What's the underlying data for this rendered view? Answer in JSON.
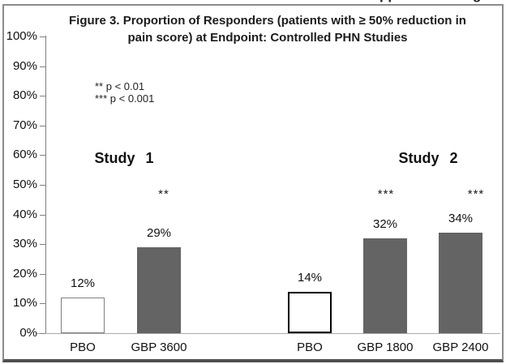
{
  "page": {
    "edge_fragments": {
      "left": "pp",
      "right": "g"
    }
  },
  "colors": {
    "bar_dark": "#646464",
    "bar_white": "#ffffff",
    "pbo_study1_outline": "#808080",
    "pbo_study2_outline": "#000000",
    "y_axis": "#808080",
    "x_axis": "#ababab",
    "frame_border": "#8c8c8c",
    "frame_bottom_border": "#4f4f4f",
    "text": "#111111"
  },
  "chart_data": {
    "type": "bar",
    "title": "Figure 3. Proportion of Responders (patients with ≥ 50% reduction in pain score) at Endpoint: Controlled PHN Studies",
    "xlabel": "",
    "ylabel": "",
    "ylim": [
      0,
      100
    ],
    "ytick_step": 10,
    "ytick_labels": [
      "0%",
      "10%",
      "20%",
      "30%",
      "40%",
      "50%",
      "60%",
      "70%",
      "80%",
      "90%",
      "100%"
    ],
    "grid": false,
    "legend": [
      "** p < 0.01",
      "*** p < 0.001"
    ],
    "legend_position": "upper-left-inside",
    "groups": [
      {
        "name": "Study 1",
        "bars": [
          {
            "category": "PBO",
            "value": 12,
            "label": "12%",
            "fill": "white",
            "outline": "gray",
            "significance": ""
          },
          {
            "category": "GBP 3600",
            "value": 29,
            "label": "29%",
            "fill": "dark",
            "outline": "none",
            "significance": "**"
          }
        ]
      },
      {
        "name": "Study 2",
        "bars": [
          {
            "category": "PBO",
            "value": 14,
            "label": "14%",
            "fill": "white",
            "outline": "black",
            "significance": ""
          },
          {
            "category": "GBP 1800",
            "value": 32,
            "label": "32%",
            "fill": "dark",
            "outline": "none",
            "significance": "***"
          },
          {
            "category": "GBP 2400",
            "value": 34,
            "label": "34%",
            "fill": "dark",
            "outline": "none",
            "significance": "***"
          }
        ]
      }
    ]
  }
}
